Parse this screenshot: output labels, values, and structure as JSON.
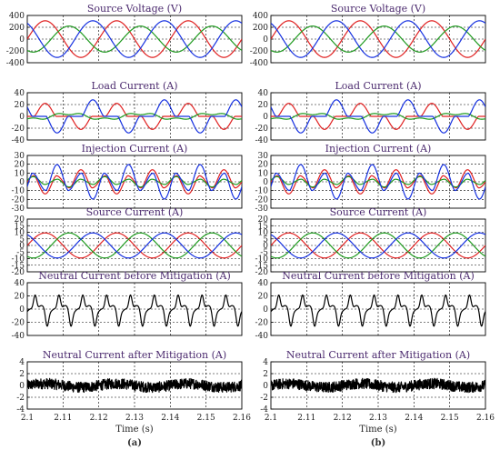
{
  "colors": {
    "phase_a": "#e02020",
    "phase_b": "#1f9a1f",
    "phase_c": "#1530e0",
    "neutral": "#000000",
    "title": "#4b2a6e"
  },
  "figure": {
    "columns": [
      {
        "label": "(a)"
      },
      {
        "label": "(b)"
      }
    ],
    "xlabel": "Time (s)",
    "xticks": [
      "2.1",
      "2.11",
      "2.12",
      "2.13",
      "2.14",
      "2.15",
      "2.16"
    ]
  },
  "chart_data": [
    {
      "type": "line",
      "title": "Source Voltage (V)",
      "xlim": [
        2.1,
        2.16
      ],
      "ylim": [
        -400,
        400
      ],
      "yticks": [
        "400",
        "200",
        "0",
        "-200",
        "-400"
      ],
      "grid": true,
      "series": [
        {
          "color": "#e02020",
          "kind": "sine",
          "amplitude": 310,
          "frequency_hz": 50,
          "phase_deg": 0
        },
        {
          "color": "#1f9a1f",
          "kind": "sine",
          "amplitude": 220,
          "frequency_hz": 50,
          "phase_deg": -120
        },
        {
          "color": "#1530e0",
          "kind": "sine",
          "amplitude": 310,
          "frequency_hz": 50,
          "phase_deg": 120
        }
      ]
    },
    {
      "type": "line",
      "title": "Load Current (A)",
      "xlim": [
        2.1,
        2.16
      ],
      "ylim": [
        -40,
        40
      ],
      "yticks": [
        "40",
        "20",
        "0",
        "-20",
        "-40"
      ],
      "grid": true,
      "series": [
        {
          "color": "#e02020",
          "kind": "rectifier_pulse",
          "amplitude": 22,
          "frequency_hz": 50,
          "phase_deg": 0
        },
        {
          "color": "#1f9a1f",
          "kind": "resistive",
          "amplitude": 8,
          "frequency_hz": 50,
          "phase_deg": -120
        },
        {
          "color": "#1530e0",
          "kind": "rectifier_pulse",
          "amplitude": 28,
          "frequency_hz": 50,
          "phase_deg": 120
        }
      ]
    },
    {
      "type": "line",
      "title": "Injection Current (A)",
      "xlim": [
        2.1,
        2.16
      ],
      "ylim": [
        -30,
        30
      ],
      "yticks": [
        "30",
        "20",
        "10",
        "0",
        "-10",
        "-20",
        "-30"
      ],
      "grid": true,
      "series": [
        {
          "color": "#e02020",
          "kind": "injection",
          "amplitude": 14,
          "frequency_hz": 50,
          "phase_deg": 0
        },
        {
          "color": "#1f9a1f",
          "kind": "injection",
          "amplitude": 6,
          "frequency_hz": 50,
          "phase_deg": -120
        },
        {
          "color": "#1530e0",
          "kind": "injection",
          "amplitude": 20,
          "frequency_hz": 50,
          "phase_deg": 120
        }
      ]
    },
    {
      "type": "line",
      "title": "Source Current (A)",
      "xlim": [
        2.1,
        2.16
      ],
      "ylim": [
        -20,
        20
      ],
      "yticks": [
        "20",
        "15",
        "10",
        "5",
        "0",
        "-5",
        "-10",
        "-15",
        "-20"
      ],
      "grid": true,
      "series": [
        {
          "color": "#e02020",
          "kind": "sine",
          "amplitude": 9.5,
          "frequency_hz": 50,
          "phase_deg": 0
        },
        {
          "color": "#1f9a1f",
          "kind": "sine",
          "amplitude": 9.5,
          "frequency_hz": 50,
          "phase_deg": -120
        },
        {
          "color": "#1530e0",
          "kind": "sine",
          "amplitude": 9.5,
          "frequency_hz": 50,
          "phase_deg": 120
        }
      ]
    },
    {
      "type": "line",
      "title": "Neutral Current before Mitigation (A)",
      "xlim": [
        2.1,
        2.16
      ],
      "ylim": [
        -40,
        40
      ],
      "yticks": [
        "40",
        "20",
        "0",
        "-20",
        "-40"
      ],
      "grid": true,
      "series": [
        {
          "color": "#000000",
          "kind": "neutral",
          "amplitude": 22,
          "frequency_hz": 150,
          "phase_deg": 0
        }
      ]
    },
    {
      "type": "line",
      "title": "Neutral Current after Mitigation (A)",
      "xlim": [
        2.1,
        2.16
      ],
      "ylim": [
        -4,
        4
      ],
      "yticks": [
        "4",
        "2",
        "0",
        "-2",
        "-4"
      ],
      "grid": true,
      "series": [
        {
          "color": "#000000",
          "kind": "noise",
          "amplitude": 0.9,
          "frequency_hz": 50,
          "phase_deg": 0
        }
      ]
    }
  ]
}
